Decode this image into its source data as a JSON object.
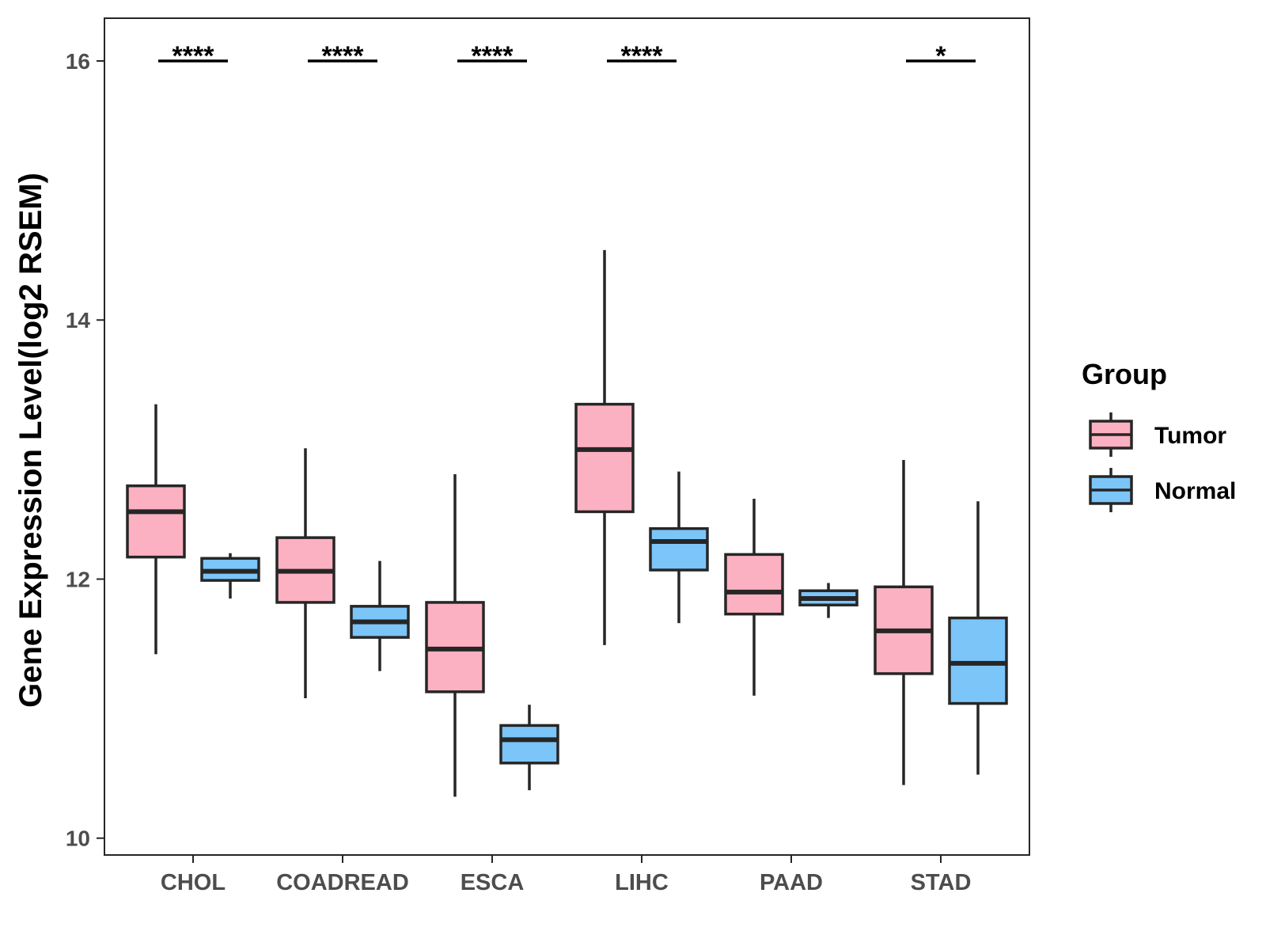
{
  "chart_data": {
    "type": "boxplot",
    "title": "",
    "xlabel": "",
    "ylabel": "Gene Expression Level(log2 RSEM)",
    "ylim": [
      9.87,
      16.33
    ],
    "yticks": [
      10,
      12,
      14,
      16
    ],
    "categories": [
      "CHOL",
      "COADREAD",
      "ESCA",
      "LIHC",
      "PAAD",
      "STAD"
    ],
    "legend": {
      "title": "Group",
      "position": "right",
      "entries": [
        "Tumor",
        "Normal"
      ]
    },
    "series": [
      {
        "name": "Tumor",
        "color": "#FBB1C1",
        "boxes": [
          {
            "category": "CHOL",
            "whisker_low": 11.42,
            "q1": 12.17,
            "median": 12.52,
            "q3": 12.72,
            "whisker_high": 13.35
          },
          {
            "category": "COADREAD",
            "whisker_low": 11.08,
            "q1": 11.82,
            "median": 12.06,
            "q3": 12.32,
            "whisker_high": 13.01
          },
          {
            "category": "ESCA",
            "whisker_low": 10.32,
            "q1": 11.13,
            "median": 11.46,
            "q3": 11.82,
            "whisker_high": 12.81
          },
          {
            "category": "LIHC",
            "whisker_low": 11.49,
            "q1": 12.52,
            "median": 13.0,
            "q3": 13.35,
            "whisker_high": 14.54
          },
          {
            "category": "PAAD",
            "whisker_low": 11.1,
            "q1": 11.73,
            "median": 11.9,
            "q3": 12.19,
            "whisker_high": 12.62
          },
          {
            "category": "STAD",
            "whisker_low": 10.41,
            "q1": 11.27,
            "median": 11.6,
            "q3": 11.94,
            "whisker_high": 12.92
          }
        ]
      },
      {
        "name": "Normal",
        "color": "#7CC5F9",
        "boxes": [
          {
            "category": "CHOL",
            "whisker_low": 11.85,
            "q1": 11.99,
            "median": 12.06,
            "q3": 12.16,
            "whisker_high": 12.2
          },
          {
            "category": "COADREAD",
            "whisker_low": 11.29,
            "q1": 11.55,
            "median": 11.67,
            "q3": 11.79,
            "whisker_high": 12.14
          },
          {
            "category": "ESCA",
            "whisker_low": 10.37,
            "q1": 10.58,
            "median": 10.76,
            "q3": 10.87,
            "whisker_high": 11.03
          },
          {
            "category": "LIHC",
            "whisker_low": 11.66,
            "q1": 12.07,
            "median": 12.29,
            "q3": 12.39,
            "whisker_high": 12.83
          },
          {
            "category": "PAAD",
            "whisker_low": 11.7,
            "q1": 11.8,
            "median": 11.85,
            "q3": 11.91,
            "whisker_high": 11.97
          },
          {
            "category": "STAD",
            "whisker_low": 10.49,
            "q1": 11.04,
            "median": 11.35,
            "q3": 11.7,
            "whisker_high": 12.6
          }
        ]
      }
    ],
    "significance": [
      {
        "category": "CHOL",
        "label": "****"
      },
      {
        "category": "COADREAD",
        "label": "****"
      },
      {
        "category": "ESCA",
        "label": "****"
      },
      {
        "category": "LIHC",
        "label": "****"
      },
      {
        "category": "PAAD",
        "label": ""
      },
      {
        "category": "STAD",
        "label": "*"
      }
    ],
    "significance_y": 16.0
  }
}
